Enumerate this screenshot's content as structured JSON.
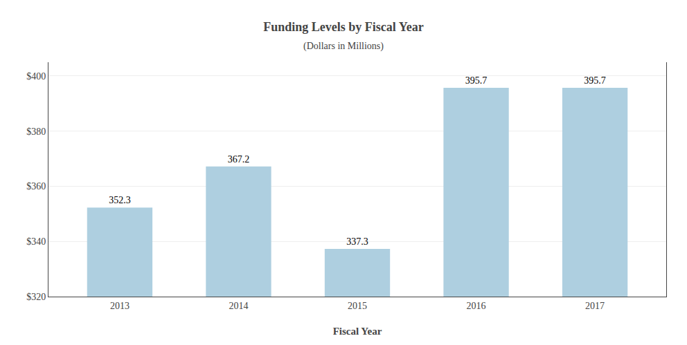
{
  "chart_data": {
    "type": "bar",
    "title": "Funding Levels by Fiscal Year",
    "subtitle": "(Dollars in Millions)",
    "xlabel": "Fiscal Year",
    "categories": [
      "2013",
      "2014",
      "2015",
      "2016",
      "2017"
    ],
    "values": [
      352.3,
      367.2,
      337.3,
      395.7,
      395.7
    ],
    "color": "#aecfe0",
    "ylim": [
      320,
      405
    ],
    "yticks": [
      {
        "value": 320,
        "label": "$320"
      },
      {
        "value": 340,
        "label": "$340"
      },
      {
        "value": 360,
        "label": "$360"
      },
      {
        "value": 380,
        "label": "$380"
      },
      {
        "value": 400,
        "label": "$400"
      }
    ],
    "grid": true,
    "data_labels": true
  }
}
